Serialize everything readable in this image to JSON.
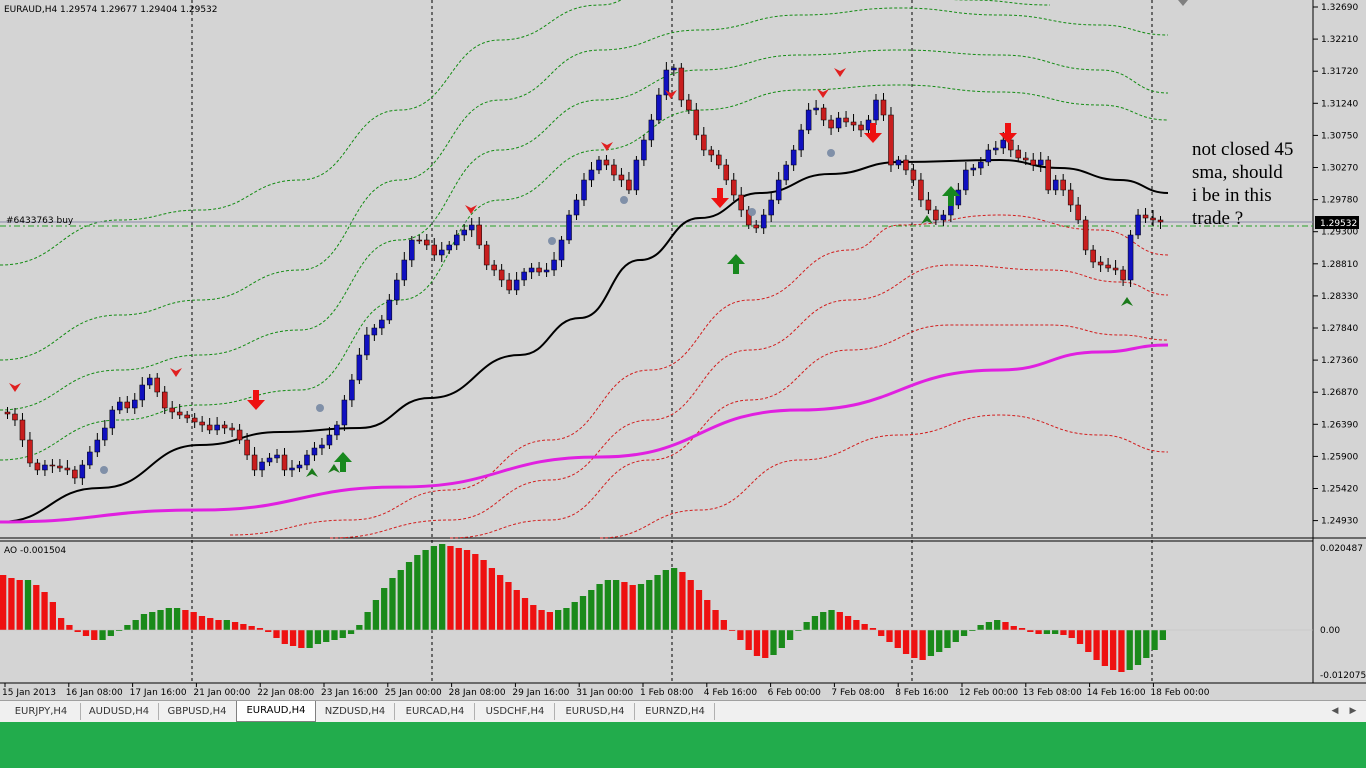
{
  "window": {
    "symbol_info": "EURAUD,H4  1.29574 1.29677 1.29404 1.29532",
    "order_label": "#6433763 buy",
    "current_price": "1.29532",
    "annotation": [
      "not closed 45",
      "sma, should",
      "i be in this",
      "trade ?"
    ]
  },
  "colors": {
    "chart_bg": "#d4d4d4",
    "bull_candle": "#1010c0",
    "bear_candle": "#c81e1e",
    "sma45": "#000000",
    "sma200": "#e020e0",
    "upper_bands": "#148c14",
    "lower_bands": "#d21e1e",
    "ao_up": "#1a8a1a",
    "ao_down": "#ee1111",
    "taskbar": "#22ac4c"
  },
  "price_axis": {
    "ticks": [
      "1.32690",
      "1.32210",
      "1.31720",
      "1.31240",
      "1.30750",
      "1.30270",
      "1.29780",
      "1.29300",
      "1.28810",
      "1.28330",
      "1.27840",
      "1.27360",
      "1.26870",
      "1.26390",
      "1.25900",
      "1.25420",
      "1.24930"
    ]
  },
  "indicator": {
    "label": "AO -0.001504",
    "ticks": [
      "0.020487",
      "0.00",
      "-0.012075"
    ]
  },
  "time_axis": {
    "labels": [
      "15 Jan 2013",
      "16 Jan 08:00",
      "17 Jan 16:00",
      "21 Jan 00:00",
      "22 Jan 08:00",
      "23 Jan 16:00",
      "25 Jan 00:00",
      "28 Jan 08:00",
      "29 Jan 16:00",
      "31 Jan 00:00",
      "1 Feb 08:00",
      "4 Feb 16:00",
      "6 Feb 00:00",
      "7 Feb 08:00",
      "8 Feb 16:00",
      "12 Feb 00:00",
      "13 Feb 08:00",
      "14 Feb 16:00",
      "18 Feb 00:00"
    ]
  },
  "tabs": [
    {
      "label": "EURJPY,H4",
      "active": false
    },
    {
      "label": "AUDUSD,H4",
      "active": false
    },
    {
      "label": "GBPUSD,H4",
      "active": false
    },
    {
      "label": "EURAUD,H4",
      "active": true
    },
    {
      "label": "NZDUSD,H4",
      "active": false
    },
    {
      "label": "EURCAD,H4",
      "active": false
    },
    {
      "label": "USDCHF,H4",
      "active": false
    },
    {
      "label": "EURUSD,H4",
      "active": false
    },
    {
      "label": "EURNZD,H4",
      "active": false
    }
  ],
  "tab_scroll": {
    "left_icon": "arrow-left-icon",
    "right_icon": "arrow-right-icon"
  }
}
